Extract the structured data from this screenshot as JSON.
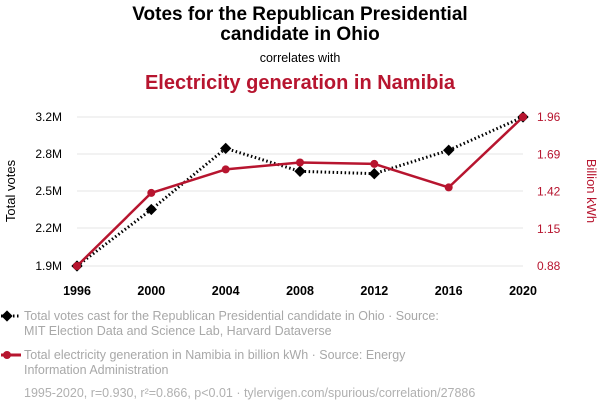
{
  "header": {
    "title_line1": "Votes for the Republican Presidential",
    "title_line2": "candidate in Ohio",
    "connector": "correlates with",
    "subtitle": "Electricity generation in Namibia"
  },
  "colors": {
    "series1": "#000000",
    "series2": "#b7152f",
    "grid": "#e6e6e6",
    "footnote": "#b0b0b0",
    "legend_text": "#a8a8a8"
  },
  "legend": [
    {
      "line1": "Total votes cast for the Republican Presidential candidate in Ohio · Source:",
      "line2": "MIT Election Data and Science Lab, Harvard Dataverse"
    },
    {
      "line1": "Total electricity generation in Namibia in billion kWh · Source: Energy",
      "line2": "Information Administration"
    }
  ],
  "footnote": "1995-2020, r=0.930, r²=0.866, p<0.01 · tylervigen.com/spurious/correlation/27886",
  "chart_data": {
    "type": "line",
    "title": "Votes for the Republican Presidential candidate in Ohio",
    "subtitle": "Electricity generation in Namibia",
    "x": [
      1996,
      2000,
      2004,
      2008,
      2012,
      2016,
      2020
    ],
    "xticks": [
      "1996",
      "2000",
      "2004",
      "2008",
      "2012",
      "2016",
      "2020"
    ],
    "xlim": [
      1996,
      2020
    ],
    "y_left": {
      "label": "Total votes",
      "lim": [
        1.9,
        3.2
      ],
      "ticks": [
        1.9,
        2.2,
        2.5,
        2.8,
        3.2
      ],
      "tick_labels": [
        "1.9M",
        "2.2M",
        "2.5M",
        "2.8M",
        "3.2M"
      ]
    },
    "y_right": {
      "label": "Billion kWh",
      "lim": [
        0.88,
        1.96
      ],
      "ticks": [
        0.88,
        1.15,
        1.42,
        1.69,
        1.96
      ],
      "tick_labels": [
        "0.88",
        "1.15",
        "1.42",
        "1.69",
        "1.96"
      ]
    },
    "series": [
      {
        "name": "Total votes cast for the Republican Presidential candidate in Ohio",
        "axis": "left",
        "style": "dotted",
        "marker": "diamond",
        "values": [
          1.9,
          2.35,
          2.86,
          2.66,
          2.64,
          2.84,
          3.2
        ]
      },
      {
        "name": "Total electricity generation in Namibia in billion kWh",
        "axis": "right",
        "style": "solid",
        "marker": "circle",
        "values": [
          0.88,
          1.41,
          1.58,
          1.63,
          1.62,
          1.45,
          1.96
        ]
      }
    ],
    "grid": true
  }
}
